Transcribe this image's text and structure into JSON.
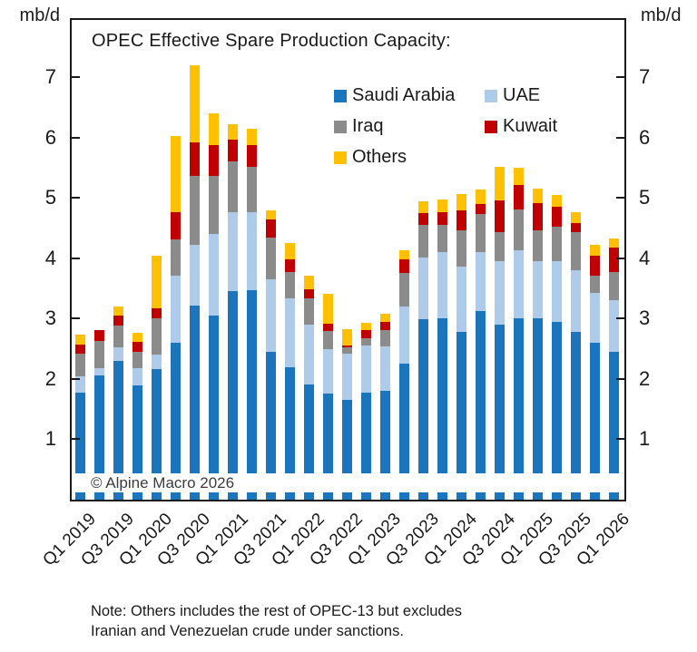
{
  "title": "OPEC Effective Spare Production Capacity:",
  "unit_left": "mb/d",
  "unit_right": "mb/d",
  "watermark": "© Alpine Macro 2026",
  "note": {
    "line1": "Note: Others includes the rest of OPEC-13 but excludes",
    "line2": "Iranian and Venezuelan crude under sanctions."
  },
  "colors": {
    "saudi_arabia": "#1B75BC",
    "uae": "#AECCEA",
    "iraq": "#8B8B8B",
    "kuwait": "#C00000",
    "others": "#FFC000",
    "axis": "#1a1a1a",
    "background": "#ffffff"
  },
  "chart_data": {
    "type": "bar",
    "stacked": true,
    "title": "OPEC Effective Spare Production Capacity:",
    "ylabel": "mb/d",
    "ylim": [
      0,
      7.95
    ],
    "yticks": [
      1,
      2,
      3,
      4,
      5,
      6,
      7
    ],
    "grid": false,
    "legend_position": "inside-top",
    "categories": [
      "Q1 2019",
      "Q2 2019",
      "Q3 2019",
      "Q4 2019",
      "Q1 2020",
      "Q2 2020",
      "Q3 2020",
      "Q4 2020",
      "Q1 2021",
      "Q2 2021",
      "Q3 2021",
      "Q4 2021",
      "Q1 2022",
      "Q2 2022",
      "Q3 2022",
      "Q4 2022",
      "Q1 2023",
      "Q2 2023",
      "Q3 2023",
      "Q4 2023",
      "Q1 2024",
      "Q2 2024",
      "Q3 2024",
      "Q4 2024",
      "Q1 2025",
      "Q2 2025",
      "Q3 2025",
      "Q4 2025",
      "Q1 2026"
    ],
    "x_tick_labels": [
      "Q1 2019",
      "Q3 2019",
      "Q1 2020",
      "Q3 2020",
      "Q1 2021",
      "Q3 2021",
      "Q1 2022",
      "Q3 2022",
      "Q1 2023",
      "Q3 2023",
      "Q1 2024",
      "Q3 2024",
      "Q1 2025",
      "Q3 2025",
      "Q1 2026"
    ],
    "series": [
      {
        "name": "Saudi Arabia",
        "color": "#1B75BC",
        "values": [
          1.77,
          2.06,
          2.3,
          1.9,
          2.17,
          2.6,
          3.22,
          3.05,
          3.45,
          3.47,
          2.45,
          2.2,
          1.91,
          1.76,
          1.66,
          1.78,
          1.81,
          2.26,
          2.99,
          3.01,
          2.78,
          3.13,
          2.9,
          3.0,
          3.01,
          2.95,
          2.78,
          2.6,
          2.45
        ]
      },
      {
        "name": "UAE",
        "color": "#AECCEA",
        "values": [
          0.27,
          0.12,
          0.23,
          0.28,
          0.24,
          1.11,
          1.01,
          1.35,
          1.32,
          1.29,
          1.2,
          1.13,
          0.99,
          0.74,
          0.76,
          0.78,
          0.73,
          0.94,
          1.02,
          1.09,
          1.08,
          0.97,
          1.05,
          1.13,
          0.94,
          1.0,
          1.02,
          0.83,
          0.85
        ]
      },
      {
        "name": "Iraq",
        "color": "#8B8B8B",
        "values": [
          0.38,
          0.45,
          0.36,
          0.27,
          0.6,
          0.61,
          1.14,
          0.97,
          0.83,
          0.76,
          0.7,
          0.45,
          0.43,
          0.3,
          0.1,
          0.12,
          0.27,
          0.55,
          0.54,
          0.45,
          0.6,
          0.63,
          0.48,
          0.68,
          0.51,
          0.58,
          0.63,
          0.29,
          0.48
        ]
      },
      {
        "name": "Kuwait",
        "color": "#C00000",
        "values": [
          0.15,
          0.18,
          0.16,
          0.17,
          0.16,
          0.45,
          0.55,
          0.51,
          0.36,
          0.36,
          0.3,
          0.2,
          0.15,
          0.12,
          0.04,
          0.13,
          0.14,
          0.23,
          0.2,
          0.22,
          0.34,
          0.17,
          0.53,
          0.4,
          0.46,
          0.32,
          0.15,
          0.33,
          0.4
        ]
      },
      {
        "name": "Others",
        "color": "#FFC000",
        "values": [
          0.16,
          0.0,
          0.15,
          0.15,
          0.88,
          1.26,
          1.28,
          0.52,
          0.26,
          0.27,
          0.15,
          0.27,
          0.23,
          0.49,
          0.27,
          0.12,
          0.13,
          0.16,
          0.2,
          0.2,
          0.27,
          0.24,
          0.55,
          0.29,
          0.24,
          0.2,
          0.19,
          0.18,
          0.15
        ]
      }
    ]
  }
}
